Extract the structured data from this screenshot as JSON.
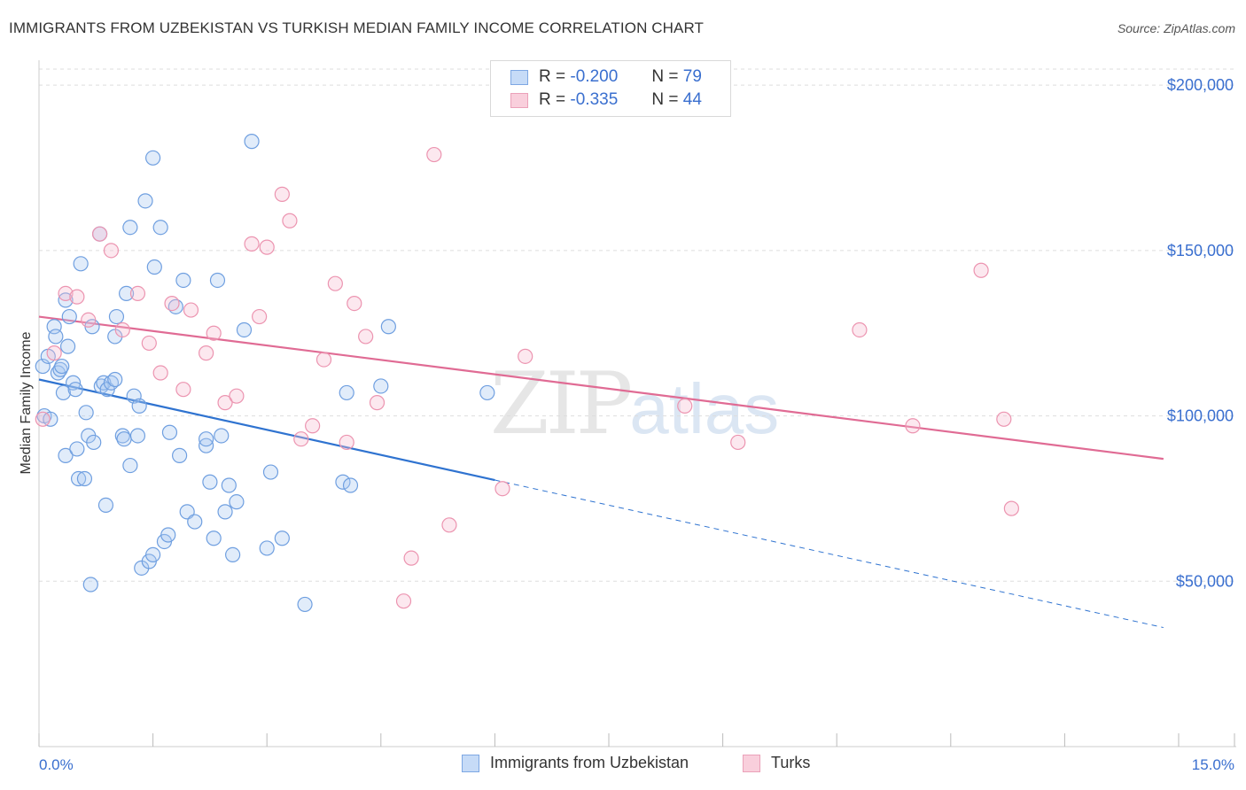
{
  "header": {
    "title": "IMMIGRANTS FROM UZBEKISTAN VS TURKISH MEDIAN FAMILY INCOME CORRELATION CHART",
    "source": "Source: ZipAtlas.com"
  },
  "legend": {
    "row1": {
      "r_label": "R =",
      "r_value": "-0.200",
      "n_label": "N =",
      "n_value": "79"
    },
    "row2": {
      "r_label": "R =",
      "r_value": "-0.335",
      "n_label": "N =",
      "n_value": "44"
    }
  },
  "bottom_legend": {
    "series1": "Immigrants from Uzbekistan",
    "series2": "Turks"
  },
  "watermark": {
    "zip": "ZIP",
    "atlas": "atlas"
  },
  "chart_data": {
    "type": "scatter",
    "ylabel": "Median Family Income",
    "xlabel": "",
    "x_tick_labels": [
      "0.0%",
      "15.0%"
    ],
    "y_tick_labels": [
      "$50,000",
      "$100,000",
      "$150,000",
      "$200,000"
    ],
    "xlim": [
      0,
      15.0
    ],
    "ylim": [
      0,
      207000
    ],
    "y_ticks": [
      50000,
      100000,
      150000,
      200000
    ],
    "grid": true,
    "legend_position": "top-center",
    "colors": {
      "series1": "#6f9fe0",
      "series2": "#ec94b0",
      "line1": "#2f73d0",
      "line2": "#e06b94"
    },
    "series": [
      {
        "name": "Immigrants from Uzbekistan",
        "r": -0.2,
        "n": 79,
        "trend": {
          "x0": 0.0,
          "y0": 111000,
          "x_solid_end": 6.0,
          "x1": 14.8,
          "y1": 36000
        },
        "points": [
          [
            0.05,
            115000
          ],
          [
            0.07,
            100000
          ],
          [
            0.12,
            118000
          ],
          [
            0.2,
            127000
          ],
          [
            0.22,
            124000
          ],
          [
            0.25,
            113000
          ],
          [
            0.28,
            114000
          ],
          [
            0.3,
            115000
          ],
          [
            0.32,
            107000
          ],
          [
            0.35,
            135000
          ],
          [
            0.35,
            88000
          ],
          [
            0.4,
            130000
          ],
          [
            0.45,
            110000
          ],
          [
            0.48,
            108000
          ],
          [
            0.5,
            90000
          ],
          [
            0.52,
            81000
          ],
          [
            0.55,
            146000
          ],
          [
            0.6,
            81000
          ],
          [
            0.62,
            101000
          ],
          [
            0.65,
            94000
          ],
          [
            0.68,
            49000
          ],
          [
            0.7,
            127000
          ],
          [
            0.72,
            92000
          ],
          [
            0.8,
            155000
          ],
          [
            0.82,
            109000
          ],
          [
            0.85,
            110000
          ],
          [
            0.88,
            73000
          ],
          [
            0.9,
            108000
          ],
          [
            0.95,
            110000
          ],
          [
            1.0,
            111000
          ],
          [
            1.0,
            124000
          ],
          [
            1.02,
            130000
          ],
          [
            1.1,
            94000
          ],
          [
            1.15,
            137000
          ],
          [
            1.2,
            85000
          ],
          [
            1.2,
            157000
          ],
          [
            1.25,
            106000
          ],
          [
            1.3,
            94000
          ],
          [
            1.32,
            103000
          ],
          [
            1.35,
            54000
          ],
          [
            1.4,
            165000
          ],
          [
            1.45,
            56000
          ],
          [
            1.5,
            178000
          ],
          [
            1.5,
            58000
          ],
          [
            1.52,
            145000
          ],
          [
            1.6,
            157000
          ],
          [
            1.65,
            62000
          ],
          [
            1.7,
            64000
          ],
          [
            1.72,
            95000
          ],
          [
            1.8,
            133000
          ],
          [
            1.85,
            88000
          ],
          [
            1.9,
            141000
          ],
          [
            1.95,
            71000
          ],
          [
            2.05,
            68000
          ],
          [
            2.2,
            91000
          ],
          [
            2.2,
            93000
          ],
          [
            2.25,
            80000
          ],
          [
            2.3,
            63000
          ],
          [
            2.35,
            141000
          ],
          [
            2.4,
            94000
          ],
          [
            2.45,
            71000
          ],
          [
            2.5,
            79000
          ],
          [
            2.55,
            58000
          ],
          [
            2.6,
            74000
          ],
          [
            2.7,
            126000
          ],
          [
            2.8,
            183000
          ],
          [
            3.0,
            60000
          ],
          [
            3.05,
            83000
          ],
          [
            3.2,
            63000
          ],
          [
            3.5,
            43000
          ],
          [
            4.0,
            80000
          ],
          [
            4.05,
            107000
          ],
          [
            4.1,
            79000
          ],
          [
            4.5,
            109000
          ],
          [
            4.6,
            127000
          ],
          [
            5.9,
            107000
          ],
          [
            0.15,
            99000
          ],
          [
            0.38,
            121000
          ],
          [
            1.12,
            93000
          ]
        ]
      },
      {
        "name": "Turks",
        "r": -0.335,
        "n": 44,
        "trend": {
          "x0": 0.0,
          "y0": 130000,
          "x1": 14.8,
          "y1": 87000
        },
        "points": [
          [
            0.05,
            99000
          ],
          [
            0.2,
            119000
          ],
          [
            0.35,
            137000
          ],
          [
            0.5,
            136000
          ],
          [
            0.65,
            129000
          ],
          [
            0.8,
            155000
          ],
          [
            0.95,
            150000
          ],
          [
            1.1,
            126000
          ],
          [
            1.3,
            137000
          ],
          [
            1.45,
            122000
          ],
          [
            1.6,
            113000
          ],
          [
            1.75,
            134000
          ],
          [
            1.9,
            108000
          ],
          [
            2.0,
            132000
          ],
          [
            2.2,
            119000
          ],
          [
            2.3,
            125000
          ],
          [
            2.45,
            104000
          ],
          [
            2.6,
            106000
          ],
          [
            2.8,
            152000
          ],
          [
            2.9,
            130000
          ],
          [
            3.0,
            151000
          ],
          [
            3.2,
            167000
          ],
          [
            3.3,
            159000
          ],
          [
            3.45,
            93000
          ],
          [
            3.6,
            97000
          ],
          [
            3.75,
            117000
          ],
          [
            3.9,
            140000
          ],
          [
            4.05,
            92000
          ],
          [
            4.15,
            134000
          ],
          [
            4.3,
            124000
          ],
          [
            4.45,
            104000
          ],
          [
            4.8,
            44000
          ],
          [
            4.9,
            57000
          ],
          [
            5.2,
            179000
          ],
          [
            5.4,
            67000
          ],
          [
            6.1,
            78000
          ],
          [
            6.4,
            118000
          ],
          [
            8.5,
            103000
          ],
          [
            9.2,
            92000
          ],
          [
            10.8,
            126000
          ],
          [
            11.5,
            97000
          ],
          [
            12.4,
            144000
          ],
          [
            12.7,
            99000
          ],
          [
            12.8,
            72000
          ]
        ]
      }
    ]
  }
}
